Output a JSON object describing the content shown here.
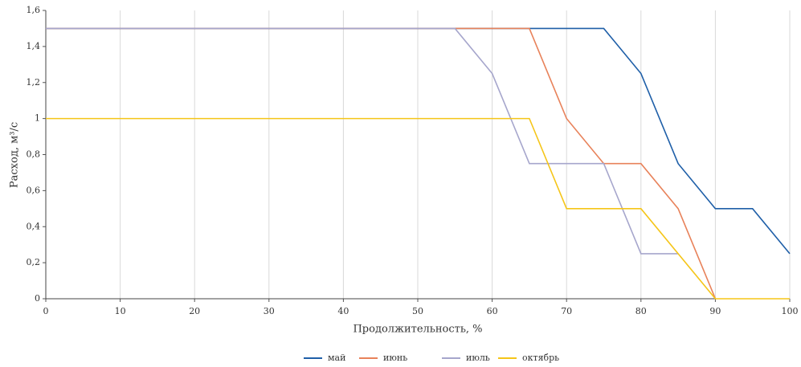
{
  "chart_data": {
    "type": "line",
    "xlabel": "Продолжительность, %",
    "ylabel": "Расход, м³/с",
    "xlim": [
      0,
      100
    ],
    "xticks": [
      0,
      10,
      20,
      30,
      40,
      50,
      60,
      70,
      80,
      90,
      100
    ],
    "ylim": [
      0,
      1.6
    ],
    "yticks": [
      0,
      {
        "value": 0.2,
        "label": "0,2"
      },
      {
        "value": 0.4,
        "label": "0,4"
      },
      {
        "value": 0.6,
        "label": "0,6"
      },
      {
        "value": 0.8,
        "label": "0,8"
      },
      1,
      {
        "value": 1.2,
        "label": "1,2"
      },
      {
        "value": 1.4,
        "label": "1,4"
      },
      {
        "value": 1.6,
        "label": "1,6"
      }
    ],
    "grid": true,
    "legend": "bottom",
    "series": [
      {
        "name": "май",
        "color": "#1f5fa8",
        "x": [
          0,
          65,
          75,
          80,
          85,
          90,
          95,
          100
        ],
        "values": [
          1.5,
          1.5,
          1.5,
          1.25,
          0.75,
          0.5,
          0.5,
          0.25
        ]
      },
      {
        "name": "июнь",
        "color": "#e8825a",
        "x": [
          0,
          65,
          70,
          75,
          80,
          85,
          90
        ],
        "values": [
          1.5,
          1.5,
          1.0,
          0.75,
          0.75,
          0.5,
          0
        ]
      },
      {
        "name": "июль",
        "color": "#a6a6cc",
        "x": [
          0,
          55,
          60,
          65,
          75,
          80,
          85
        ],
        "values": [
          1.5,
          1.5,
          1.25,
          0.75,
          0.75,
          0.25,
          0.25
        ]
      },
      {
        "name": "октябрь",
        "color": "#f5c518",
        "x": [
          0,
          65,
          70,
          80,
          90,
          100
        ],
        "values": [
          1.0,
          1.0,
          0.5,
          0.5,
          0,
          0
        ]
      }
    ]
  }
}
